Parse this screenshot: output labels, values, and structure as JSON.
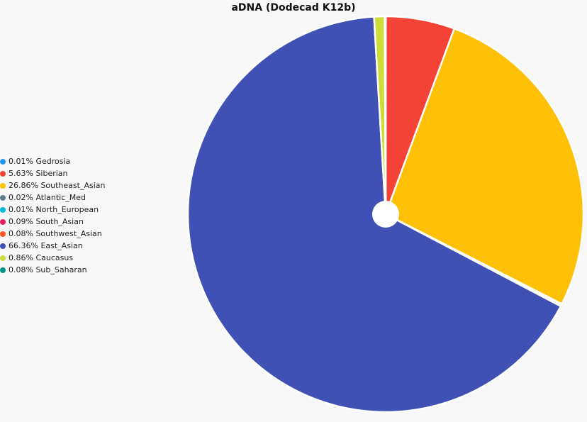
{
  "chart_data": {
    "type": "pie",
    "title": "aDNA (Dodecad K12b)",
    "legend_position": "left",
    "start_angle_deg": 0,
    "slices": [
      {
        "label": "Gedrosia",
        "value": 0.01,
        "color": "#2196f3"
      },
      {
        "label": "Siberian",
        "value": 5.63,
        "color": "#f44336"
      },
      {
        "label": "Southeast_Asian",
        "value": 26.86,
        "color": "#ffc107"
      },
      {
        "label": "Atlantic_Med",
        "value": 0.02,
        "color": "#607d8b"
      },
      {
        "label": "North_European",
        "value": 0.01,
        "color": "#00bcd4"
      },
      {
        "label": "South_Asian",
        "value": 0.09,
        "color": "#e91e63"
      },
      {
        "label": "Southwest_Asian",
        "value": 0.08,
        "color": "#ff5722"
      },
      {
        "label": "East_Asian",
        "value": 66.36,
        "color": "#3f51b5"
      },
      {
        "label": "Caucasus",
        "value": 0.86,
        "color": "#cddc39"
      },
      {
        "label": "Sub_Saharan",
        "value": 0.08,
        "color": "#009688"
      }
    ]
  }
}
